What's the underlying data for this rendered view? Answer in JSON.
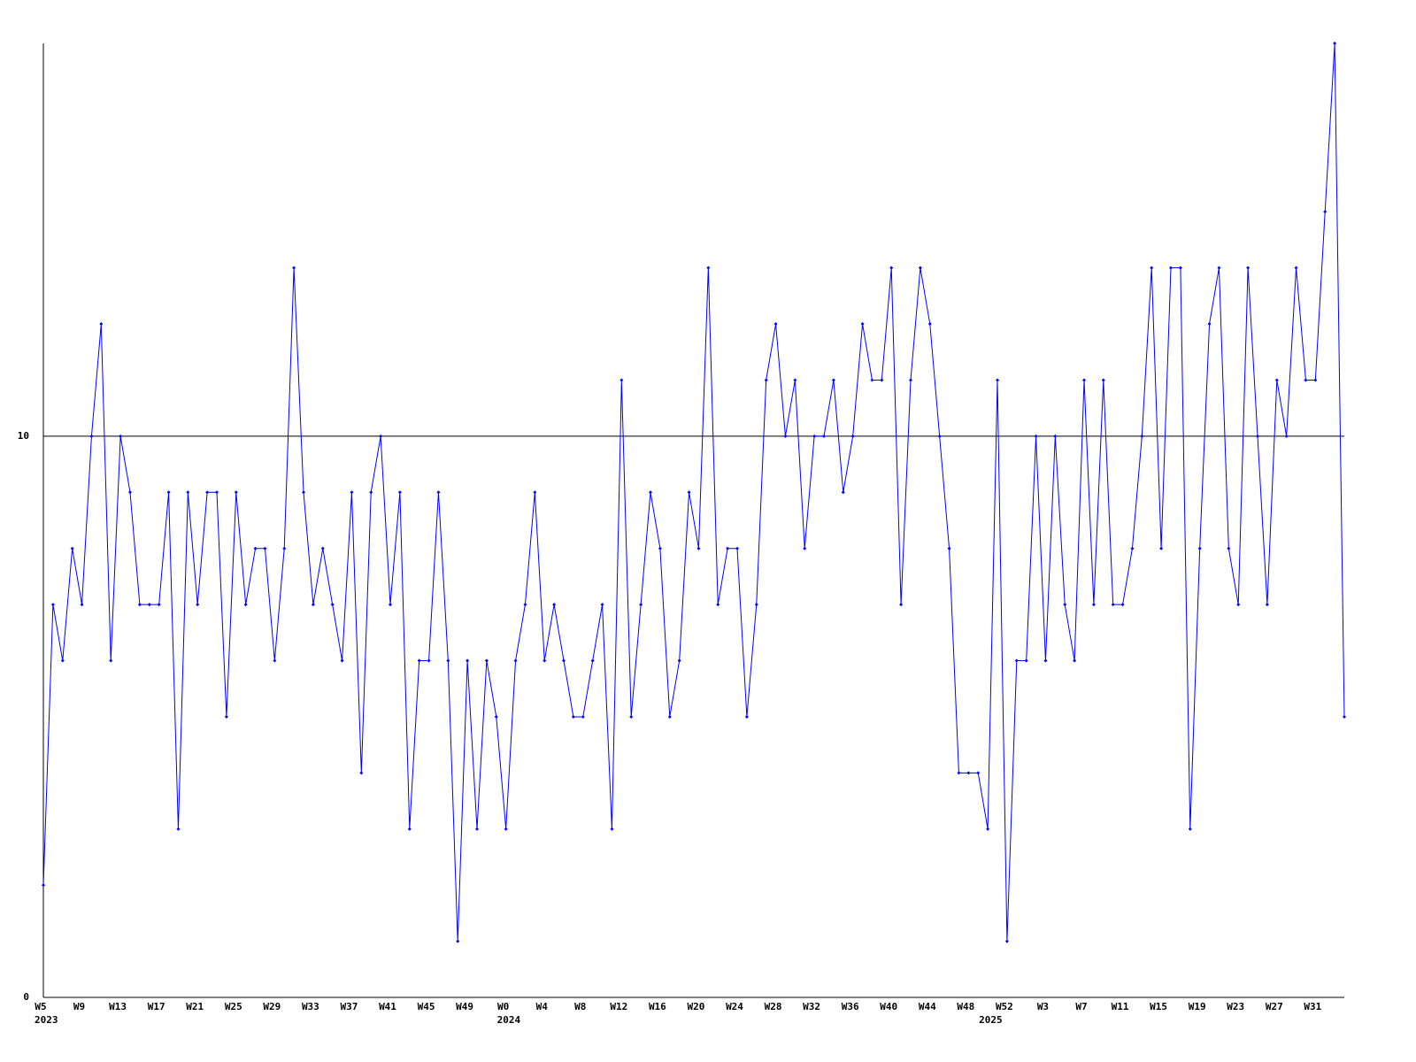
{
  "chart_data": {
    "type": "line",
    "color": "#0000ff",
    "categories": [
      "W5",
      null,
      null,
      null,
      "W9",
      null,
      null,
      null,
      "W13",
      null,
      null,
      null,
      "W17",
      null,
      null,
      null,
      "W21",
      null,
      null,
      null,
      "W25",
      null,
      null,
      null,
      "W29",
      null,
      null,
      null,
      "W33",
      null,
      null,
      null,
      "W37",
      null,
      null,
      null,
      "W41",
      null,
      null,
      null,
      "W45",
      null,
      null,
      null,
      "W49",
      null,
      null,
      null,
      "W0",
      null,
      null,
      null,
      "W4",
      null,
      null,
      null,
      "W8",
      null,
      null,
      null,
      "W12",
      null,
      null,
      null,
      "W16",
      null,
      null,
      null,
      "W20",
      null,
      null,
      null,
      "W24",
      null,
      null,
      null,
      "W28",
      null,
      null,
      null,
      "W32",
      null,
      null,
      null,
      "W36",
      null,
      null,
      null,
      "W40",
      null,
      null,
      null,
      "W44",
      null,
      null,
      null,
      "W48",
      null,
      null,
      null,
      "W52",
      null,
      null,
      null,
      "W3",
      null,
      null,
      null,
      "W7",
      null,
      null,
      null,
      "W11",
      null,
      null,
      null,
      "W15",
      null,
      null,
      null,
      "W19",
      null,
      null,
      null,
      "W23",
      null,
      null,
      null,
      "W27",
      null,
      null,
      null,
      "W31",
      null,
      null,
      null
    ],
    "category_years": [
      "2023",
      null,
      null,
      null,
      null,
      null,
      null,
      null,
      null,
      null,
      null,
      null,
      null,
      null,
      null,
      null,
      null,
      null,
      null,
      null,
      null,
      null,
      null,
      null,
      null,
      null,
      null,
      null,
      null,
      null,
      null,
      null,
      null,
      null,
      null,
      null,
      null,
      null,
      null,
      null,
      null,
      null,
      null,
      null,
      null,
      null,
      null,
      null,
      "2024",
      null,
      null,
      null,
      null,
      null,
      null,
      null,
      null,
      null,
      null,
      null,
      null,
      null,
      null,
      null,
      null,
      null,
      null,
      null,
      null,
      null,
      null,
      null,
      null,
      null,
      null,
      null,
      null,
      null,
      null,
      null,
      null,
      null,
      null,
      null,
      null,
      null,
      null,
      null,
      null,
      null,
      null,
      null,
      null,
      null,
      null,
      null,
      null,
      null,
      "2025",
      null,
      null,
      null,
      null,
      null,
      null,
      null,
      null,
      null,
      null,
      null,
      null,
      null,
      null,
      null,
      null,
      null,
      null,
      null,
      null,
      null,
      null,
      null,
      null,
      null,
      null,
      null,
      null,
      null,
      null,
      null,
      null,
      null,
      null,
      null
    ],
    "values": [
      2,
      7,
      6,
      8,
      7,
      10,
      12,
      6,
      10,
      9,
      7,
      7,
      7,
      9,
      3,
      9,
      7,
      9,
      9,
      5,
      9,
      7,
      8,
      8,
      6,
      8,
      13,
      9,
      7,
      8,
      7,
      6,
      9,
      4,
      9,
      10,
      7,
      9,
      3,
      6,
      6,
      9,
      6,
      1,
      6,
      3,
      6,
      5,
      3,
      6,
      7,
      9,
      6,
      7,
      6,
      5,
      5,
      6,
      7,
      3,
      11,
      5,
      7,
      9,
      8,
      5,
      6,
      9,
      8,
      13,
      7,
      8,
      8,
      5,
      7,
      11,
      12,
      10,
      11,
      8,
      10,
      10,
      11,
      9,
      10,
      12,
      11,
      11,
      13,
      7,
      11,
      13,
      12,
      10,
      8,
      4,
      4,
      4,
      3,
      11,
      1,
      6,
      6,
      10,
      6,
      10,
      7,
      6,
      11,
      7,
      11,
      7,
      7,
      8,
      10,
      13,
      8,
      13,
      13,
      3,
      8,
      12,
      13,
      8,
      7,
      13,
      10,
      7,
      11,
      10,
      13,
      11,
      11,
      14,
      17,
      5
    ],
    "ylim": [
      0,
      17
    ],
    "yticks": [
      0,
      10
    ],
    "grid": true
  }
}
